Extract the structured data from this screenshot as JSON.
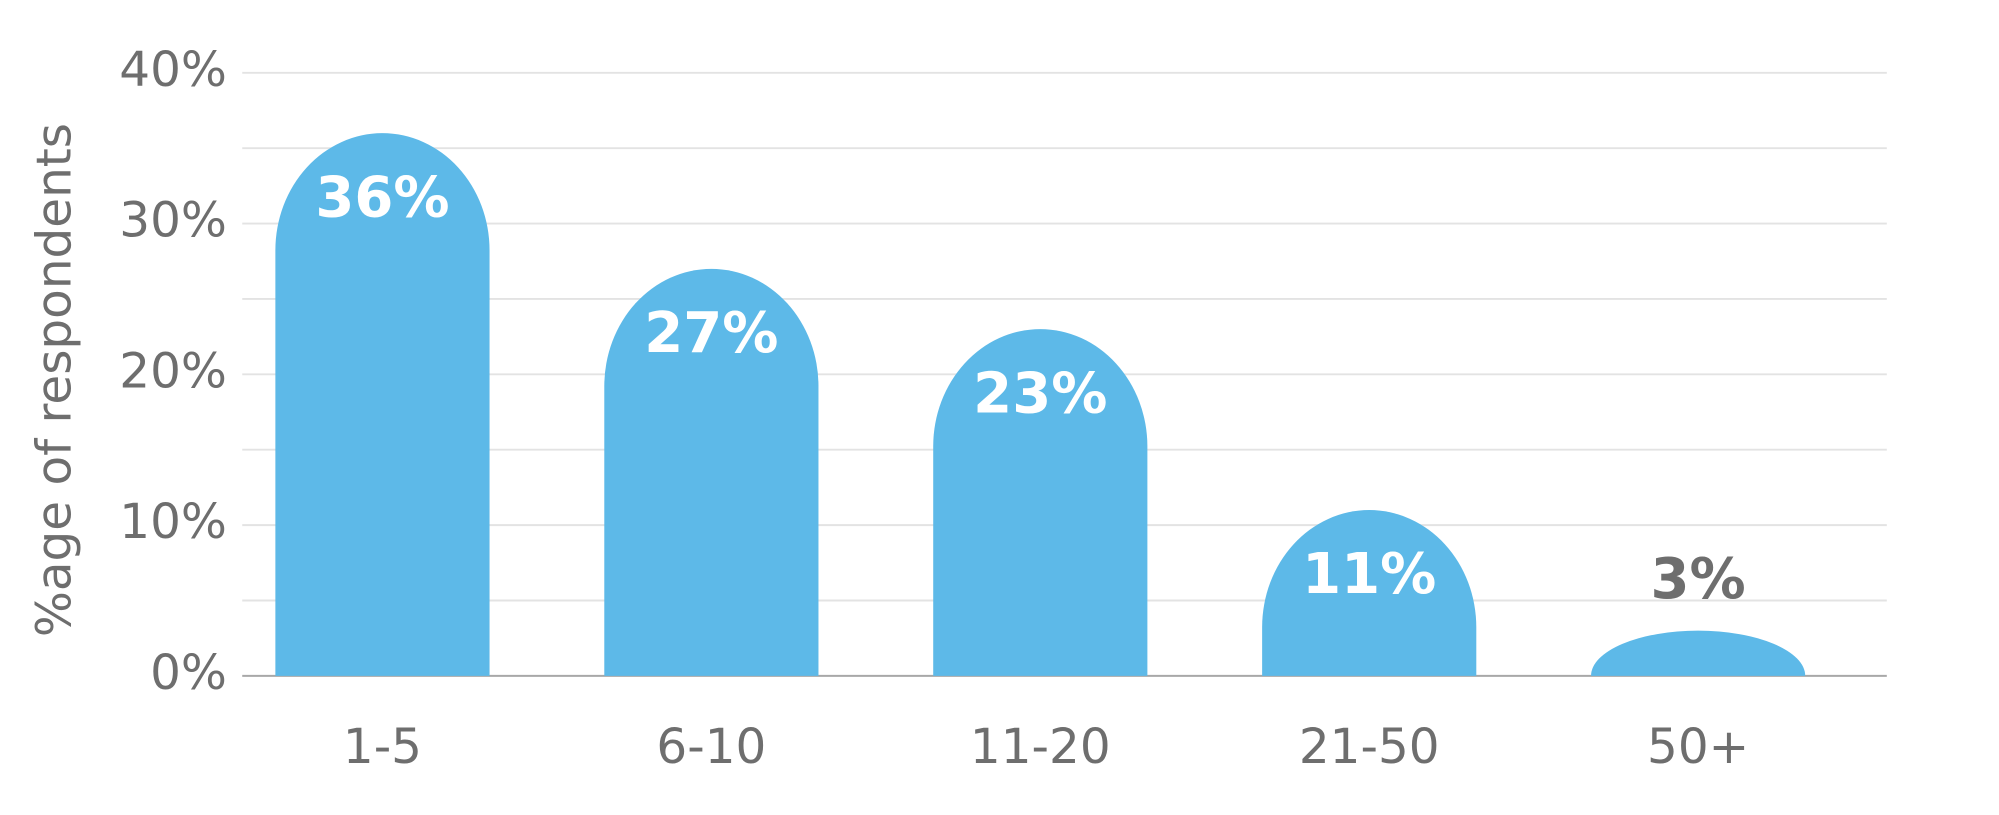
{
  "chart_data": {
    "type": "bar",
    "y_label": "%age of respondents",
    "categories": [
      "1-5",
      "6-10",
      "11-20",
      "21-50",
      "50+"
    ],
    "values": [
      36,
      27,
      23,
      11,
      3
    ],
    "value_labels": [
      "36%",
      "27%",
      "23%",
      "11%",
      "3%"
    ],
    "color": "#5db9e8",
    "ylim": [
      0,
      40
    ],
    "yticks": [
      {
        "value": 0,
        "label": "0%"
      },
      {
        "value": 10,
        "label": "10%"
      },
      {
        "value": 20,
        "label": "20%"
      },
      {
        "value": 30,
        "label": "30%"
      },
      {
        "value": 40,
        "label": "40%"
      }
    ],
    "minor_yticks": [
      5,
      15,
      25,
      35
    ],
    "grid": true
  }
}
